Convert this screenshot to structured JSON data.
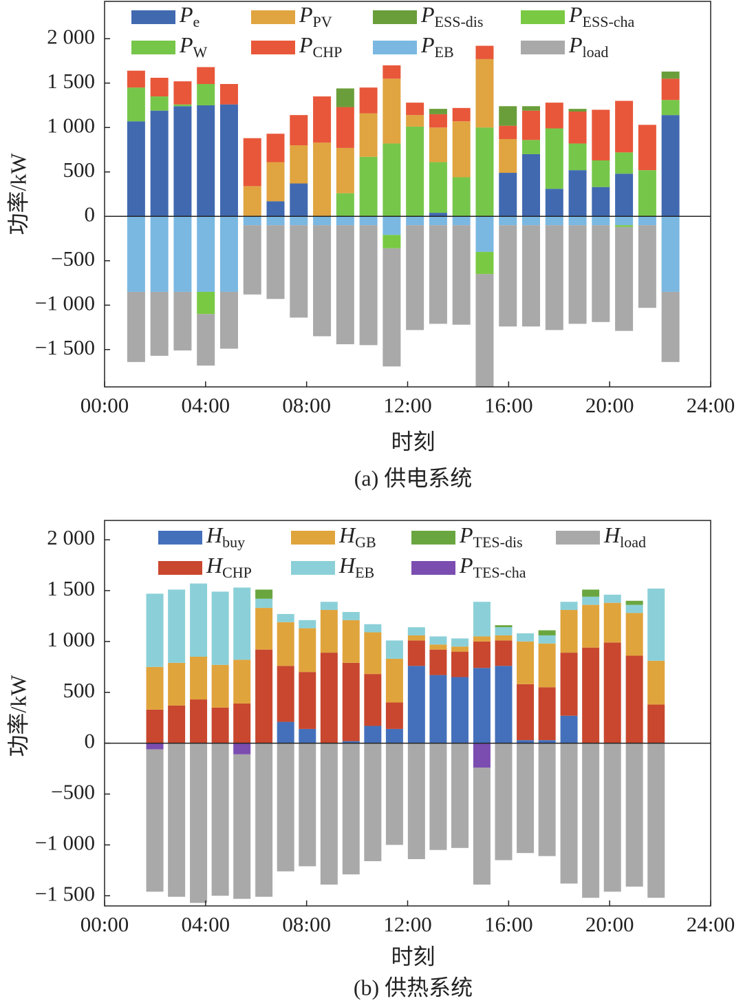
{
  "chart_data": [
    {
      "type": "bar",
      "stacked": true,
      "caption": "(a) 供电系统",
      "xlabel": "时刻",
      "ylabel": "功率/kW",
      "x": [
        1.25,
        2.17,
        3.09,
        4.01,
        4.93,
        5.85,
        6.77,
        7.69,
        8.61,
        9.53,
        10.45,
        11.37,
        12.29,
        13.21,
        14.13,
        15.05,
        15.97,
        16.89,
        17.81,
        18.73,
        19.65,
        20.57,
        21.49,
        22.41
      ],
      "xlim": [
        0,
        24
      ],
      "xticks": [
        {
          "value": 0,
          "label": "00:00"
        },
        {
          "value": 4,
          "label": "04:00"
        },
        {
          "value": 8,
          "label": "08:00"
        },
        {
          "value": 12,
          "label": "12:00"
        },
        {
          "value": 16,
          "label": "16:00"
        },
        {
          "value": 20,
          "label": "20:00"
        },
        {
          "value": 24,
          "label": "24:00"
        }
      ],
      "ylim": [
        -1920,
        2420
      ],
      "yticks": [
        {
          "value": 2000,
          "label": "2 000"
        },
        {
          "value": 1500,
          "label": "1 500"
        },
        {
          "value": 1000,
          "label": "1 000"
        },
        500,
        0,
        {
          "value": -500,
          "label": "−500"
        },
        {
          "value": -1000,
          "label": "−1 000"
        },
        {
          "value": -1500,
          "label": "−1 500"
        }
      ],
      "series": [
        {
          "name": {
            "main": "P",
            "sub": "e"
          },
          "color": "#4169b0",
          "values": [
            1070,
            1190,
            1240,
            1250,
            1260,
            0,
            170,
            370,
            0,
            0,
            0,
            0,
            0,
            40,
            0,
            0,
            490,
            700,
            310,
            520,
            330,
            480,
            0,
            1140
          ]
        },
        {
          "name": {
            "main": "P",
            "sub": "PV"
          },
          "color": "#e0a440",
          "values": [
            0,
            0,
            0,
            0,
            0,
            340,
            440,
            430,
            830,
            510,
            490,
            730,
            130,
            390,
            630,
            770,
            380,
            0,
            0,
            0,
            0,
            0,
            0,
            0
          ]
        },
        {
          "name": {
            "main": "P",
            "sub": "ESS-dis"
          },
          "color": "#6a9e3a",
          "values": [
            0,
            0,
            0,
            0,
            0,
            0,
            0,
            0,
            0,
            210,
            0,
            0,
            0,
            60,
            0,
            0,
            220,
            50,
            0,
            30,
            0,
            0,
            0,
            80
          ]
        },
        {
          "name": {
            "main": "P",
            "sub": "ESS-cha"
          },
          "color": "#7ac943",
          "values": [
            0,
            0,
            0,
            -250,
            0,
            0,
            0,
            0,
            0,
            0,
            0,
            -150,
            0,
            0,
            0,
            -250,
            0,
            0,
            0,
            0,
            0,
            -20,
            0,
            0
          ]
        },
        {
          "name": {
            "main": "P",
            "sub": "W"
          },
          "color": "#76c64a",
          "values": [
            380,
            160,
            20,
            240,
            0,
            0,
            0,
            0,
            0,
            260,
            670,
            820,
            1010,
            570,
            440,
            1000,
            0,
            160,
            680,
            300,
            300,
            240,
            520,
            170
          ]
        },
        {
          "name": {
            "main": "P",
            "sub": "CHP"
          },
          "color": "#e8573a",
          "values": [
            190,
            210,
            260,
            190,
            230,
            540,
            320,
            340,
            520,
            460,
            290,
            150,
            140,
            150,
            150,
            150,
            150,
            330,
            290,
            360,
            570,
            580,
            510,
            240
          ]
        },
        {
          "name": {
            "main": "P",
            "sub": "EB"
          },
          "color": "#7ab8e2",
          "values": [
            -850,
            -850,
            -850,
            -850,
            -850,
            -100,
            -100,
            -100,
            -100,
            -100,
            -100,
            -210,
            -100,
            -100,
            -100,
            -400,
            -100,
            -100,
            -100,
            -100,
            -100,
            -100,
            -100,
            -850
          ]
        },
        {
          "name": {
            "main": "P",
            "sub": "load"
          },
          "color": "#a9a9a9",
          "values": [
            -790,
            -720,
            -660,
            -580,
            -640,
            -780,
            -830,
            -1040,
            -1250,
            -1340,
            -1350,
            -1330,
            -1180,
            -1110,
            -1120,
            -1270,
            -1140,
            -1140,
            -1180,
            -1110,
            -1090,
            -1170,
            -930,
            -790
          ]
        }
      ]
    },
    {
      "type": "bar",
      "stacked": true,
      "caption": "(b) 供热系统",
      "xlabel": "时刻",
      "ylabel": "功率/kW",
      "x": [
        1.99,
        2.85,
        3.72,
        4.58,
        5.44,
        6.31,
        7.17,
        8.03,
        8.89,
        9.76,
        10.62,
        11.48,
        12.35,
        13.21,
        14.07,
        14.94,
        15.8,
        16.66,
        17.52,
        18.39,
        19.25,
        20.11,
        20.98,
        21.84
      ],
      "xlim": [
        0,
        24
      ],
      "xticks": [
        {
          "value": 0,
          "label": "00:00"
        },
        {
          "value": 4,
          "label": "04:00"
        },
        {
          "value": 8,
          "label": "08:00"
        },
        {
          "value": 12,
          "label": "12:00"
        },
        {
          "value": 16,
          "label": "16:00"
        },
        {
          "value": 20,
          "label": "20:00"
        },
        {
          "value": 24,
          "label": "24:00"
        }
      ],
      "ylim": [
        -1600,
        2190
      ],
      "yticks": [
        {
          "value": 2000,
          "label": "2 000"
        },
        {
          "value": 1500,
          "label": "1 500"
        },
        {
          "value": 1000,
          "label": "1 000"
        },
        500,
        0,
        {
          "value": -500,
          "label": "−500"
        },
        {
          "value": -1000,
          "label": "−1 000"
        },
        {
          "value": -1500,
          "label": "−1 500"
        }
      ],
      "series": [
        {
          "name": {
            "main": "H",
            "sub": "buy"
          },
          "color": "#4470bb",
          "values": [
            0,
            0,
            0,
            0,
            0,
            0,
            210,
            140,
            0,
            20,
            170,
            140,
            760,
            670,
            650,
            740,
            760,
            30,
            30,
            270,
            0,
            0,
            0,
            0
          ]
        },
        {
          "name": {
            "main": "H",
            "sub": "GB"
          },
          "color": "#e0a43c",
          "values": [
            420,
            420,
            420,
            420,
            430,
            410,
            430,
            430,
            420,
            420,
            410,
            430,
            50,
            50,
            50,
            50,
            50,
            420,
            430,
            420,
            420,
            390,
            420,
            430
          ]
        },
        {
          "name": {
            "main": "P",
            "sub": "TES-dis"
          },
          "color": "#6aa640",
          "values": [
            0,
            0,
            0,
            0,
            0,
            90,
            0,
            0,
            0,
            0,
            0,
            0,
            0,
            0,
            0,
            0,
            20,
            0,
            50,
            0,
            70,
            0,
            40,
            0
          ]
        },
        {
          "name": {
            "main": "H",
            "sub": "load"
          },
          "color": "#a9a9a9",
          "values": [
            -1400,
            -1510,
            -1570,
            -1500,
            -1420,
            -1510,
            -1260,
            -1210,
            -1390,
            -1290,
            -1160,
            -1000,
            -1140,
            -1050,
            -1030,
            -1150,
            -1150,
            -1080,
            -1110,
            -1380,
            -1520,
            -1460,
            -1410,
            -1520
          ]
        },
        {
          "name": {
            "main": "H",
            "sub": "CHP"
          },
          "color": "#c8472e",
          "values": [
            330,
            370,
            430,
            350,
            390,
            920,
            550,
            560,
            890,
            770,
            510,
            260,
            250,
            250,
            250,
            260,
            250,
            550,
            520,
            620,
            940,
            990,
            860,
            380
          ]
        },
        {
          "name": {
            "main": "H",
            "sub": "EB"
          },
          "color": "#8bd0d8",
          "values": [
            720,
            720,
            720,
            720,
            710,
            90,
            80,
            80,
            80,
            80,
            80,
            180,
            80,
            80,
            80,
            340,
            80,
            80,
            80,
            80,
            80,
            80,
            80,
            710
          ]
        },
        {
          "name": {
            "main": "P",
            "sub": "TES-cha"
          },
          "color": "#7b4db0",
          "values": [
            -60,
            0,
            0,
            0,
            -110,
            0,
            0,
            0,
            0,
            0,
            0,
            0,
            0,
            0,
            0,
            -240,
            0,
            0,
            0,
            0,
            0,
            0,
            0,
            0
          ]
        }
      ]
    }
  ]
}
